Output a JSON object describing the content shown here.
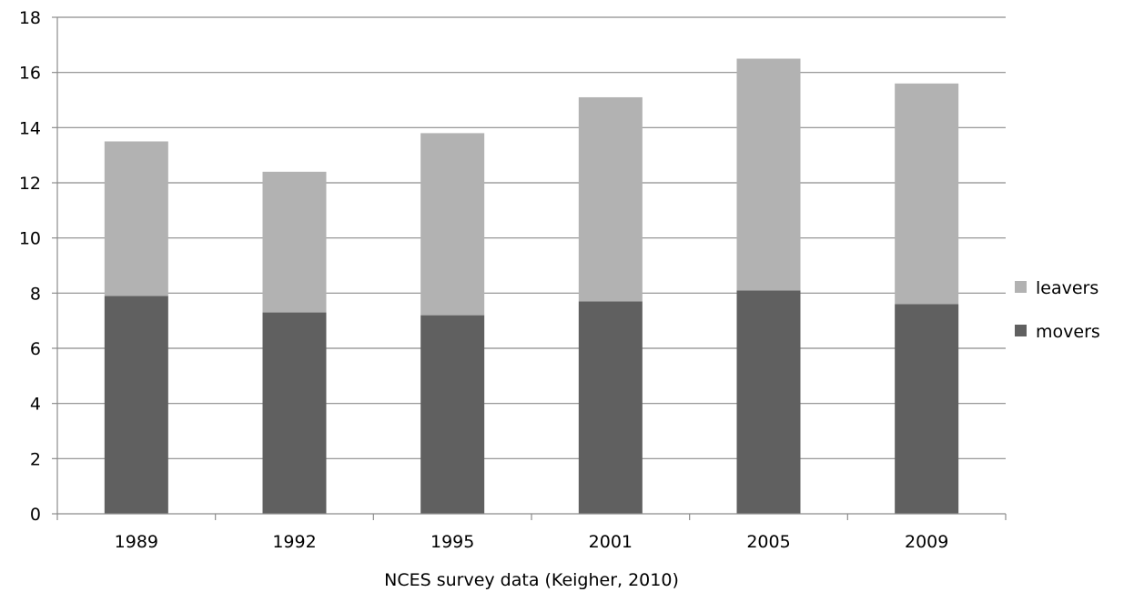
{
  "chart_data": {
    "type": "bar",
    "stacked": true,
    "categories": [
      "1989",
      "1992",
      "1995",
      "2001",
      "2005",
      "2009"
    ],
    "series": [
      {
        "name": "movers",
        "values": [
          7.9,
          7.3,
          7.2,
          7.7,
          8.1,
          7.6
        ],
        "color": "#606060"
      },
      {
        "name": "leavers",
        "values": [
          5.6,
          5.1,
          6.6,
          7.4,
          8.4,
          8.0
        ],
        "color": "#b2b2b2"
      }
    ],
    "xlabel": "NCES survey data (Keigher, 2010)",
    "ylabel": "",
    "ylim": [
      0,
      18
    ],
    "yticks": [
      "0",
      "2",
      "4",
      "6",
      "8",
      "10",
      "12",
      "14",
      "16",
      "18"
    ],
    "grid": true,
    "legend_position": "right",
    "legend_order": [
      "leavers",
      "movers"
    ],
    "grid_color": "#8c8c8c"
  }
}
